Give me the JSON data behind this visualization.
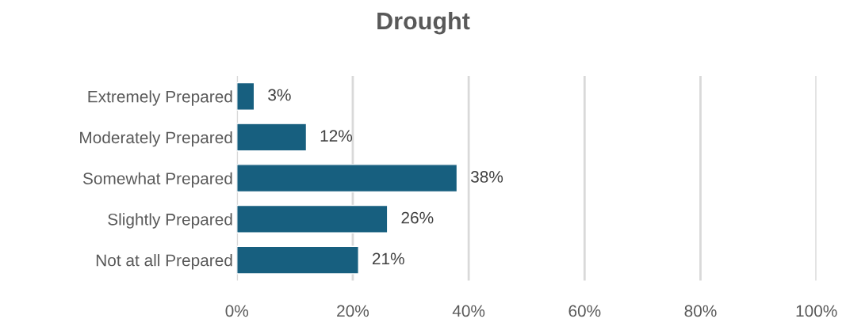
{
  "chart_data": {
    "type": "bar",
    "orientation": "horizontal",
    "title": "Drought",
    "categories": [
      "Extremely Prepared",
      "Moderately Prepared",
      "Somewhat Prepared",
      "Slightly Prepared",
      "Not at all Prepared"
    ],
    "values": [
      3,
      12,
      38,
      26,
      21
    ],
    "color": "#175f7f",
    "value_labels": [
      "3%",
      "12%",
      "38%",
      "26%",
      "21%"
    ],
    "xlim": [
      0,
      100
    ],
    "xticks": [
      {
        "value": 0,
        "label": "0%"
      },
      {
        "value": 20,
        "label": "20%"
      },
      {
        "value": 40,
        "label": "40%"
      },
      {
        "value": 60,
        "label": "60%"
      },
      {
        "value": 80,
        "label": "80%"
      },
      {
        "value": 100,
        "label": "100%"
      }
    ],
    "grid": "x",
    "legend": false
  }
}
